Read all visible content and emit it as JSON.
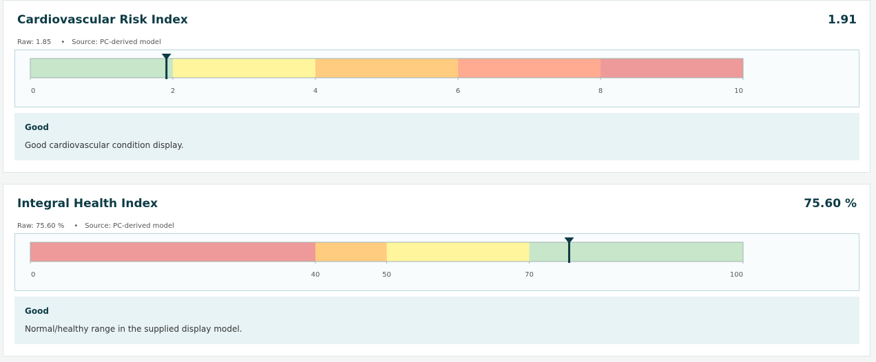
{
  "cards": [
    {
      "title": "Cardiovascular Risk Index",
      "value": {
        "value": 1.91,
        "label": "1.91"
      },
      "raw": "Raw: 1.85",
      "source": "Source: PC-derived model",
      "range": [
        0,
        10
      ],
      "ticks": [
        0,
        2,
        4,
        6,
        8,
        10
      ],
      "bands": [
        {
          "from": 0,
          "to": 2,
          "color": "#c8e6c9"
        },
        {
          "from": 2,
          "to": 4,
          "color": "#fff59d"
        },
        {
          "from": 4,
          "to": 6,
          "color": "#ffcc80"
        },
        {
          "from": 6,
          "to": 8,
          "color": "#ffab91"
        },
        {
          "from": 8,
          "to": 10,
          "color": "#ef9a9a"
        }
      ],
      "status": {
        "title": "Good",
        "text": "Good cardiovascular condition display."
      }
    },
    {
      "title": "Integral Health Index",
      "value": {
        "value": 75.6,
        "label": "75.60 %"
      },
      "raw": "Raw: 75.60 %",
      "source": "Source: PC-derived model",
      "range": [
        0,
        100
      ],
      "ticks": [
        0,
        40,
        50,
        70,
        100
      ],
      "bands": [
        {
          "from": 0,
          "to": 40,
          "color": "#ef9a9a"
        },
        {
          "from": 40,
          "to": 50,
          "color": "#ffcc80"
        },
        {
          "from": 50,
          "to": 70,
          "color": "#fff59d"
        },
        {
          "from": 70,
          "to": 100,
          "color": "#c8e6c9"
        }
      ],
      "status": {
        "title": "Good",
        "text": "Normal/healthy range in the supplied display model."
      }
    }
  ]
}
